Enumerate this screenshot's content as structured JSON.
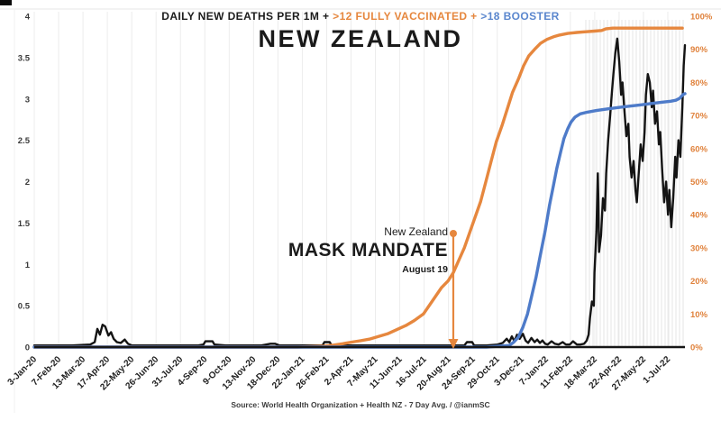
{
  "legend": {
    "deaths": "DAILY NEW DEATHS PER 1M + ",
    "vaccinated": ">12 FULLY VACCINATED + ",
    "booster": ">18 BOOSTER"
  },
  "title": "NEW ZEALAND",
  "annotation": {
    "line1": "New Zealand",
    "line2": "MASK MANDATE",
    "line3": "August 19"
  },
  "source": "Source: World Health Organization + Health NZ - 7 Day Avg. / @ianmSC",
  "colors": {
    "orange": "#E6873E",
    "blue": "#4E7BC9",
    "black": "#141414",
    "left_axis_text": "#3a3a3a",
    "right_axis_text": "#E0823C",
    "x_axis_text": "#1f1f1f",
    "stripe": "#ececec"
  },
  "chart_data": {
    "type": "line",
    "title": "NEW ZEALAND",
    "subtitle": "DAILY NEW DEATHS PER 1M + >12 FULLY VACCINATED + >18 BOOSTER",
    "x_tick_labels": [
      "3-Jan-20",
      "7-Feb-20",
      "13-Mar-20",
      "17-Apr-20",
      "22-May-20",
      "26-Jun-20",
      "31-Jul-20",
      "4-Sep-20",
      "9-Oct-20",
      "13-Nov-20",
      "18-Dec-20",
      "22-Jan-21",
      "26-Feb-21",
      "2-Apr-21",
      "7-May-21",
      "11-Jun-21",
      "16-Jul-21",
      "20-Aug-21",
      "24-Sep-21",
      "29-Oct-21",
      "3-Dec-21",
      "7-Jan-22",
      "11-Feb-22",
      "18-Mar-22",
      "22-Apr-22",
      "27-May-22",
      "1-Jul-22"
    ],
    "left_axis": {
      "min": 0,
      "max": 4,
      "ticks": [
        4,
        3.5,
        3,
        2.5,
        2,
        1.5,
        1,
        0.5,
        0
      ]
    },
    "right_axis": {
      "min": 0,
      "max": 100,
      "ticks": [
        "100%",
        "90%",
        "80%",
        "70%",
        "60%",
        "50%",
        "40%",
        "30%",
        "20%",
        "10%",
        "0%"
      ]
    },
    "grid": "faint-vertical",
    "legend_position": "top-center",
    "annotation": {
      "label": "New Zealand MASK MANDATE",
      "date": "August 19",
      "x_frac": 0.644
    },
    "series": [
      {
        "name": "daily-new-deaths-per-1m-7day-avg",
        "axis": "left",
        "color": "#141414",
        "width": 2.4,
        "points": [
          [
            0.0,
            0.02
          ],
          [
            0.03,
            0.02
          ],
          [
            0.058,
            0.02
          ],
          [
            0.086,
            0.03
          ],
          [
            0.093,
            0.06
          ],
          [
            0.097,
            0.22
          ],
          [
            0.101,
            0.15
          ],
          [
            0.105,
            0.27
          ],
          [
            0.109,
            0.25
          ],
          [
            0.114,
            0.14
          ],
          [
            0.118,
            0.18
          ],
          [
            0.122,
            0.1
          ],
          [
            0.127,
            0.06
          ],
          [
            0.133,
            0.05
          ],
          [
            0.139,
            0.09
          ],
          [
            0.144,
            0.04
          ],
          [
            0.15,
            0.02
          ],
          [
            0.169,
            0.02
          ],
          [
            0.197,
            0.02
          ],
          [
            0.224,
            0.02
          ],
          [
            0.252,
            0.02
          ],
          [
            0.26,
            0.03
          ],
          [
            0.263,
            0.07
          ],
          [
            0.274,
            0.07
          ],
          [
            0.277,
            0.03
          ],
          [
            0.294,
            0.02
          ],
          [
            0.321,
            0.02
          ],
          [
            0.349,
            0.02
          ],
          [
            0.363,
            0.04
          ],
          [
            0.37,
            0.04
          ],
          [
            0.377,
            0.02
          ],
          [
            0.404,
            0.02
          ],
          [
            0.443,
            0.02
          ],
          [
            0.446,
            0.06
          ],
          [
            0.454,
            0.06
          ],
          [
            0.457,
            0.02
          ],
          [
            0.474,
            0.02
          ],
          [
            0.501,
            0.02
          ],
          [
            0.529,
            0.02
          ],
          [
            0.557,
            0.02
          ],
          [
            0.584,
            0.02
          ],
          [
            0.612,
            0.02
          ],
          [
            0.64,
            0.02
          ],
          [
            0.661,
            0.02
          ],
          [
            0.665,
            0.06
          ],
          [
            0.673,
            0.06
          ],
          [
            0.676,
            0.02
          ],
          [
            0.695,
            0.02
          ],
          [
            0.712,
            0.03
          ],
          [
            0.72,
            0.05
          ],
          [
            0.726,
            0.1
          ],
          [
            0.73,
            0.06
          ],
          [
            0.734,
            0.13
          ],
          [
            0.738,
            0.07
          ],
          [
            0.742,
            0.15
          ],
          [
            0.746,
            0.1
          ],
          [
            0.751,
            0.16
          ],
          [
            0.755,
            0.08
          ],
          [
            0.759,
            0.05
          ],
          [
            0.764,
            0.11
          ],
          [
            0.769,
            0.06
          ],
          [
            0.773,
            0.09
          ],
          [
            0.777,
            0.05
          ],
          [
            0.781,
            0.08
          ],
          [
            0.785,
            0.04
          ],
          [
            0.789,
            0.03
          ],
          [
            0.795,
            0.07
          ],
          [
            0.8,
            0.04
          ],
          [
            0.806,
            0.03
          ],
          [
            0.812,
            0.06
          ],
          [
            0.817,
            0.03
          ],
          [
            0.823,
            0.03
          ],
          [
            0.828,
            0.07
          ],
          [
            0.834,
            0.03
          ],
          [
            0.839,
            0.03
          ],
          [
            0.845,
            0.04
          ],
          [
            0.849,
            0.08
          ],
          [
            0.852,
            0.15
          ],
          [
            0.854,
            0.35
          ],
          [
            0.857,
            0.55
          ],
          [
            0.86,
            0.5
          ],
          [
            0.861,
            0.9
          ],
          [
            0.864,
            1.4
          ],
          [
            0.866,
            2.1
          ],
          [
            0.867,
            1.75
          ],
          [
            0.868,
            1.15
          ],
          [
            0.871,
            1.35
          ],
          [
            0.874,
            1.8
          ],
          [
            0.877,
            1.65
          ],
          [
            0.879,
            2.1
          ],
          [
            0.882,
            2.5
          ],
          [
            0.885,
            2.8
          ],
          [
            0.888,
            3.1
          ],
          [
            0.89,
            3.3
          ],
          [
            0.893,
            3.55
          ],
          [
            0.896,
            3.73
          ],
          [
            0.899,
            3.45
          ],
          [
            0.902,
            3.05
          ],
          [
            0.904,
            3.2
          ],
          [
            0.907,
            2.85
          ],
          [
            0.91,
            2.55
          ],
          [
            0.913,
            2.7
          ],
          [
            0.915,
            2.3
          ],
          [
            0.918,
            2.05
          ],
          [
            0.921,
            2.25
          ],
          [
            0.924,
            1.9
          ],
          [
            0.926,
            1.75
          ],
          [
            0.929,
            2.1
          ],
          [
            0.932,
            2.45
          ],
          [
            0.935,
            2.25
          ],
          [
            0.938,
            2.6
          ],
          [
            0.94,
            3.05
          ],
          [
            0.943,
            3.3
          ],
          [
            0.946,
            3.2
          ],
          [
            0.949,
            2.9
          ],
          [
            0.951,
            3.1
          ],
          [
            0.954,
            2.7
          ],
          [
            0.957,
            2.85
          ],
          [
            0.96,
            2.45
          ],
          [
            0.962,
            2.6
          ],
          [
            0.965,
            2.15
          ],
          [
            0.968,
            1.75
          ],
          [
            0.971,
            2.0
          ],
          [
            0.974,
            1.6
          ],
          [
            0.976,
            1.9
          ],
          [
            0.979,
            1.45
          ],
          [
            0.982,
            1.8
          ],
          [
            0.985,
            2.3
          ],
          [
            0.987,
            2.05
          ],
          [
            0.99,
            2.5
          ],
          [
            0.993,
            2.3
          ],
          [
            0.996,
            2.9
          ],
          [
            0.998,
            3.4
          ],
          [
            1.0,
            3.65
          ]
        ]
      },
      {
        "name": "fully-vaccinated-pct",
        "axis": "right",
        "color": "#E6873E",
        "width": 3.4,
        "points": [
          [
            0.0,
            0
          ],
          [
            0.3,
            0
          ],
          [
            0.404,
            0
          ],
          [
            0.446,
            0.3
          ],
          [
            0.46,
            0.6
          ],
          [
            0.474,
            1.0
          ],
          [
            0.488,
            1.5
          ],
          [
            0.501,
            1.9
          ],
          [
            0.515,
            2.4
          ],
          [
            0.543,
            4.0
          ],
          [
            0.571,
            6.5
          ],
          [
            0.584,
            8.0
          ],
          [
            0.598,
            10.0
          ],
          [
            0.612,
            14.0
          ],
          [
            0.626,
            18.0
          ],
          [
            0.636,
            20.0
          ],
          [
            0.644,
            22.5
          ],
          [
            0.652,
            26.0
          ],
          [
            0.661,
            30.0
          ],
          [
            0.669,
            34.5
          ],
          [
            0.677,
            39.0
          ],
          [
            0.686,
            44.0
          ],
          [
            0.694,
            50.0
          ],
          [
            0.702,
            56.0
          ],
          [
            0.71,
            62.0
          ],
          [
            0.719,
            67.0
          ],
          [
            0.727,
            72.0
          ],
          [
            0.735,
            77.0
          ],
          [
            0.744,
            81.0
          ],
          [
            0.752,
            85.0
          ],
          [
            0.76,
            88.0
          ],
          [
            0.769,
            90.0
          ],
          [
            0.778,
            91.8
          ],
          [
            0.788,
            93.0
          ],
          [
            0.798,
            93.8
          ],
          [
            0.807,
            94.3
          ],
          [
            0.82,
            94.8
          ],
          [
            0.834,
            95.1
          ],
          [
            0.848,
            95.3
          ],
          [
            0.861,
            95.5
          ],
          [
            0.872,
            95.7
          ],
          [
            0.879,
            96.2
          ],
          [
            0.889,
            96.4
          ],
          [
            0.917,
            96.4
          ],
          [
            0.958,
            96.4
          ],
          [
            0.996,
            96.4
          ]
        ]
      },
      {
        "name": "booster-pct",
        "axis": "right",
        "color": "#4E7BC9",
        "width": 3.4,
        "points": [
          [
            0.0,
            0
          ],
          [
            0.6,
            0
          ],
          [
            0.695,
            0
          ],
          [
            0.73,
            0.5
          ],
          [
            0.737,
            1.5
          ],
          [
            0.744,
            3
          ],
          [
            0.751,
            6
          ],
          [
            0.758,
            10
          ],
          [
            0.764,
            15
          ],
          [
            0.771,
            21
          ],
          [
            0.778,
            28
          ],
          [
            0.785,
            35
          ],
          [
            0.792,
            43
          ],
          [
            0.798,
            49
          ],
          [
            0.803,
            54
          ],
          [
            0.809,
            59
          ],
          [
            0.814,
            63
          ],
          [
            0.82,
            66
          ],
          [
            0.825,
            68
          ],
          [
            0.831,
            69.5
          ],
          [
            0.839,
            70.5
          ],
          [
            0.85,
            71
          ],
          [
            0.864,
            71.5
          ],
          [
            0.881,
            72
          ],
          [
            0.897,
            72.4
          ],
          [
            0.914,
            72.8
          ],
          [
            0.931,
            73.2
          ],
          [
            0.947,
            73.6
          ],
          [
            0.964,
            74
          ],
          [
            0.978,
            74.3
          ],
          [
            0.986,
            74.6
          ],
          [
            0.992,
            75.2
          ],
          [
            0.997,
            76.3
          ],
          [
            1.0,
            76.6
          ]
        ]
      }
    ]
  }
}
